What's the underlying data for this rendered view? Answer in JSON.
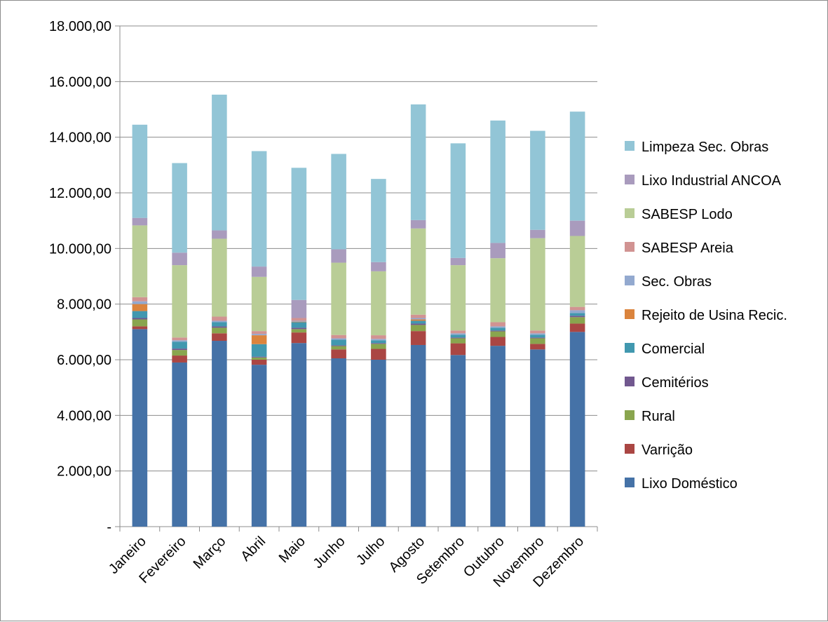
{
  "chart_data": {
    "type": "bar",
    "stacked": true,
    "title": "",
    "xlabel": "",
    "ylabel": "",
    "ylim": [
      0,
      18000
    ],
    "y_ticks": [
      "-",
      "2.000,00",
      "4.000,00",
      "6.000,00",
      "8.000,00",
      "10.000,00",
      "12.000,00",
      "14.000,00",
      "16.000,00",
      "18.000,00"
    ],
    "grid": true,
    "legend_position": "right",
    "categories": [
      "Janeiro",
      "Fevereiro",
      "Março",
      "Abril",
      "Maio",
      "Junho",
      "Julho",
      "Agosto",
      "Setembro",
      "Outubro",
      "Novembro",
      "Dezembro"
    ],
    "series": [
      {
        "name": "Lixo Doméstico",
        "color": "#4572a7",
        "values": [
          7100,
          5900,
          6680,
          5820,
          6600,
          6050,
          6000,
          6530,
          6170,
          6500,
          6370,
          7000
        ]
      },
      {
        "name": "Varrição",
        "color": "#aa4643",
        "values": [
          100,
          250,
          270,
          180,
          380,
          320,
          390,
          500,
          420,
          320,
          200,
          300
        ]
      },
      {
        "name": "Rural",
        "color": "#89a54e",
        "values": [
          250,
          200,
          200,
          80,
          120,
          120,
          180,
          220,
          180,
          200,
          200,
          230
        ]
      },
      {
        "name": "Cemitérios",
        "color": "#71588f",
        "values": [
          50,
          50,
          50,
          30,
          50,
          30,
          30,
          50,
          30,
          30,
          30,
          50
        ]
      },
      {
        "name": "Comercial",
        "color": "#4198af",
        "values": [
          250,
          250,
          150,
          450,
          200,
          200,
          100,
          100,
          100,
          100,
          100,
          100
        ]
      },
      {
        "name": "Rejeito de Usina Recic.",
        "color": "#db843d",
        "values": [
          250,
          0,
          0,
          320,
          20,
          0,
          0,
          50,
          0,
          0,
          0,
          0
        ]
      },
      {
        "name": "Sec. Obras",
        "color": "#93a9cf",
        "values": [
          100,
          50,
          50,
          50,
          30,
          50,
          50,
          50,
          50,
          50,
          50,
          100
        ]
      },
      {
        "name": "SABESP Areia",
        "color": "#d19392",
        "values": [
          150,
          100,
          150,
          100,
          100,
          120,
          130,
          120,
          100,
          150,
          100,
          120
        ]
      },
      {
        "name": "SABESP Lodo",
        "color": "#b9cd96",
        "values": [
          2580,
          2600,
          2800,
          1950,
          0,
          2600,
          2300,
          3100,
          2350,
          2300,
          3320,
          2550
        ]
      },
      {
        "name": "Lixo Industrial ANCOA",
        "color": "#a99bbd",
        "values": [
          270,
          450,
          300,
          370,
          650,
          480,
          330,
          300,
          260,
          550,
          300,
          550
        ]
      },
      {
        "name": "Limpeza Sec. Obras",
        "color": "#92c5d6",
        "values": [
          3350,
          3220,
          4880,
          4150,
          4750,
          3430,
          2990,
          4160,
          4120,
          4400,
          3560,
          3920
        ]
      }
    ]
  }
}
